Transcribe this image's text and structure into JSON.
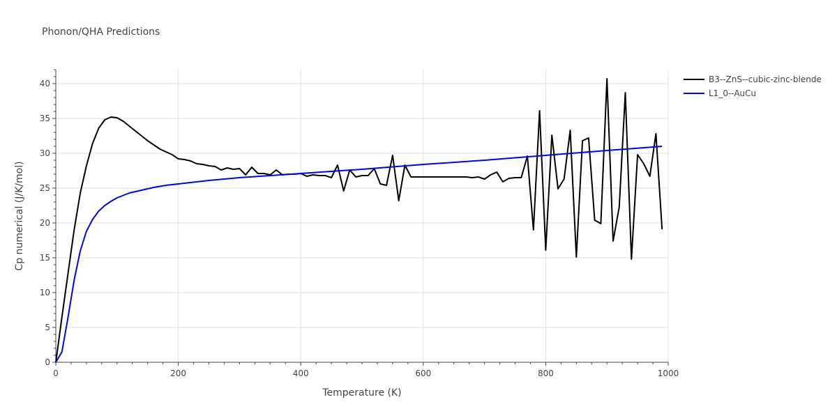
{
  "chart_data": {
    "type": "line",
    "title": "Phonon/QHA Predictions",
    "xlabel": "Temperature (K)",
    "ylabel": "Cp numerical (J/K/mol)",
    "xlim": [
      0,
      1000
    ],
    "ylim": [
      0,
      42
    ],
    "xticks": [
      0,
      200,
      400,
      600,
      800,
      1000
    ],
    "yticks": [
      0,
      5,
      10,
      15,
      20,
      25,
      30,
      35,
      40
    ],
    "grid": true,
    "legend_position": "top-right",
    "series": [
      {
        "name": "B3--ZnS--cubic-zinc-blende",
        "color": "#000000",
        "x": [
          0,
          10,
          20,
          30,
          40,
          50,
          60,
          70,
          80,
          90,
          100,
          110,
          120,
          130,
          140,
          150,
          160,
          170,
          180,
          190,
          200,
          210,
          220,
          230,
          240,
          250,
          260,
          270,
          280,
          290,
          300,
          310,
          320,
          330,
          340,
          350,
          360,
          370,
          380,
          390,
          400,
          410,
          420,
          430,
          440,
          450,
          460,
          470,
          480,
          490,
          500,
          510,
          520,
          530,
          540,
          550,
          560,
          570,
          580,
          590,
          600,
          610,
          620,
          630,
          640,
          650,
          660,
          670,
          680,
          690,
          700,
          710,
          720,
          730,
          740,
          750,
          760,
          770,
          780,
          790,
          800,
          810,
          820,
          830,
          840,
          850,
          860,
          870,
          880,
          890,
          900,
          910,
          920,
          930,
          940,
          950,
          960,
          970,
          980,
          990
        ],
        "y": [
          0,
          6.5,
          12.8,
          19.0,
          24.3,
          28.2,
          31.4,
          33.6,
          34.8,
          35.2,
          35.1,
          34.6,
          33.9,
          33.2,
          32.5,
          31.8,
          31.2,
          30.6,
          30.2,
          29.8,
          29.2,
          29.1,
          28.9,
          28.5,
          28.4,
          28.2,
          28.1,
          27.6,
          27.9,
          27.7,
          27.8,
          26.9,
          28.0,
          27.1,
          27.1,
          26.9,
          27.6,
          26.9,
          27.0,
          27.0,
          27.1,
          26.7,
          26.9,
          26.8,
          26.8,
          26.5,
          28.3,
          24.6,
          27.6,
          26.6,
          26.8,
          26.8,
          27.8,
          25.6,
          25.4,
          29.7,
          23.2,
          28.3,
          26.6,
          26.6,
          26.6,
          26.6,
          26.6,
          26.6,
          26.6,
          26.6,
          26.6,
          26.6,
          26.5,
          26.6,
          26.3,
          26.9,
          27.3,
          25.9,
          26.4,
          26.5,
          26.5,
          29.6,
          19.0,
          36.1,
          16.1,
          32.6,
          24.9,
          26.3,
          33.3,
          15.1,
          31.8,
          32.2,
          20.4,
          19.9,
          40.7,
          17.4,
          22.3,
          38.7,
          14.8,
          29.8,
          28.5,
          26.7,
          32.8,
          19.1
        ]
      },
      {
        "name": "L1_0--AuCu",
        "color": "#0000ff",
        "x": [
          0,
          10,
          20,
          30,
          40,
          50,
          60,
          70,
          80,
          90,
          100,
          120,
          140,
          160,
          180,
          200,
          250,
          300,
          350,
          400,
          500,
          600,
          700,
          800,
          900,
          990
        ],
        "y": [
          0,
          1.5,
          6.5,
          11.8,
          16.0,
          18.8,
          20.5,
          21.7,
          22.5,
          23.1,
          23.6,
          24.3,
          24.7,
          25.1,
          25.4,
          25.6,
          26.1,
          26.5,
          26.8,
          27.1,
          27.7,
          28.4,
          29.0,
          29.7,
          30.4,
          31.0
        ]
      }
    ]
  }
}
